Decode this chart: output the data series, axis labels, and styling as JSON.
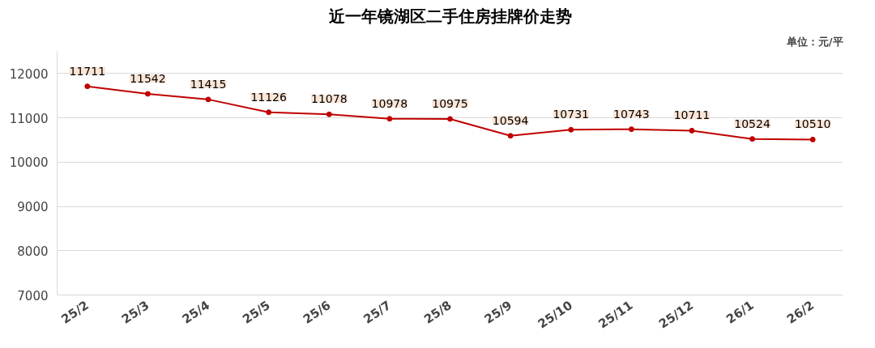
{
  "chart_data": {
    "type": "line",
    "title": "近一年镜湖区二手住房挂牌价走势",
    "annotations": [
      "单位：元/平"
    ],
    "categories": [
      "25/2",
      "25/3",
      "25/4",
      "25/5",
      "25/6",
      "25/7",
      "25/8",
      "25/9",
      "25/10",
      "25/11",
      "25/12",
      "26/1",
      "26/2"
    ],
    "series": [
      {
        "color": "#c00000",
        "values": [
          11711,
          11542,
          11415,
          11126,
          11078,
          10978,
          10975,
          10594,
          10731,
          10743,
          10711,
          10524,
          10510
        ]
      }
    ],
    "ylim": [
      7000,
      12500
    ],
    "yticks": [
      7000,
      8000,
      9000,
      10000,
      11000,
      12000
    ],
    "grid": "y",
    "marker": "circle",
    "line_style": "solid",
    "data_labels": true
  }
}
